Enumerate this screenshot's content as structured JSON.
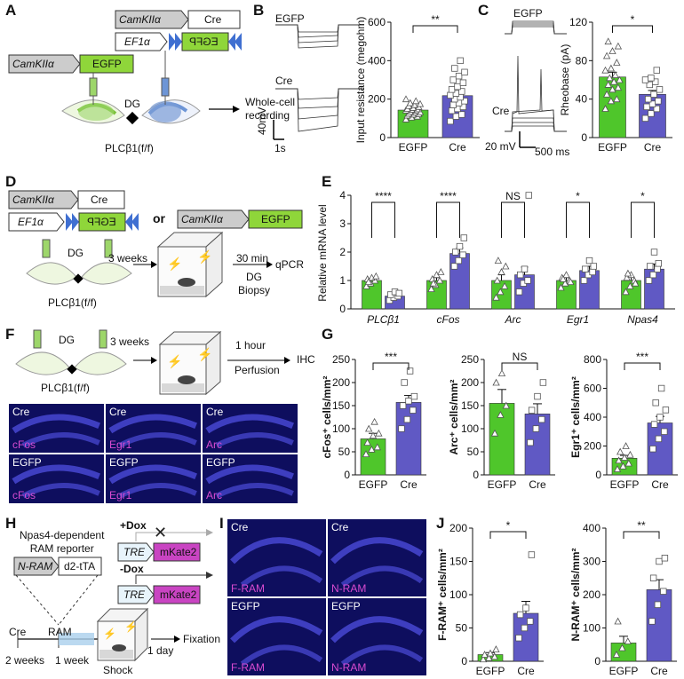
{
  "panels": {
    "A": "A",
    "B": "B",
    "C": "C",
    "D": "D",
    "E": "E",
    "F": "F",
    "G": "G",
    "H": "H",
    "I": "I",
    "J": "J"
  },
  "colors": {
    "egfp": "#4fc62b",
    "cre": "#6059c4",
    "micro_bg": "#0e0e5e",
    "magenta": "#d84bd0",
    "arrow_blue": "#3f6fd1"
  },
  "panel_a": {
    "promoter": "CamKIIα",
    "egfp": "EGFP",
    "cre": "Cre",
    "ef1a": "EF1α",
    "egfp_flipped": "EGFP",
    "dg": "DG",
    "mouse": "PLCβ1(f/f)",
    "readout": "Whole-cell\nrecording"
  },
  "panel_b": {
    "trace1": "EGFP",
    "trace2": "Cre",
    "scale_y": "40mV",
    "scale_x": "1s",
    "significance": "**"
  },
  "panel_c": {
    "trace1": "EGFP",
    "trace2": "Cre",
    "scale_y": "20 mV",
    "scale_x": "500 ms",
    "significance": "*"
  },
  "panel_d": {
    "promoter": "CamKIIα",
    "cre": "Cre",
    "ef1a": "EF1α",
    "egfp_flipped": "EGFP",
    "or": "or",
    "egfp": "EGFP",
    "dg": "DG",
    "mouse": "PLCβ1(f/f)",
    "weeks": "3 weeks",
    "time": "30 min",
    "biopsy": "DG\nBiopsy",
    "readout": "qPCR"
  },
  "panel_f": {
    "dg": "DG",
    "mouse": "PLCβ1(f/f)",
    "weeks": "3 weeks",
    "time": "1 hour",
    "perfusion": "Perfusion",
    "readout": "IHC",
    "micrographs": [
      {
        "group": "Cre",
        "stain": "cFos"
      },
      {
        "group": "Cre",
        "stain": "Egr1"
      },
      {
        "group": "Cre",
        "stain": "Arc"
      },
      {
        "group": "EGFP",
        "stain": "cFos"
      },
      {
        "group": "EGFP",
        "stain": "Egr1"
      },
      {
        "group": "EGFP",
        "stain": "Arc"
      }
    ]
  },
  "panel_h": {
    "plus_dox": "+Dox",
    "minus_dox": "-Dox",
    "reporter": "Npas4-dependent\nRAM reporter",
    "nram": "N-RAM",
    "tta": "d2-tTA",
    "tre": "TRE",
    "mkate": "mKate2",
    "cre": "Cre",
    "ram": "RAM",
    "weeks2": "2 weeks",
    "weeks1": "1 week",
    "day": "1 day",
    "shock": "Shock",
    "readout": "Fixation"
  },
  "panel_i": {
    "micrographs": [
      {
        "group": "Cre",
        "stain": "F-RAM"
      },
      {
        "group": "Cre",
        "stain": "N-RAM"
      },
      {
        "group": "EGFP",
        "stain": "F-RAM"
      },
      {
        "group": "EGFP",
        "stain": "N-RAM"
      }
    ]
  },
  "chart_data": [
    {
      "id": "B",
      "type": "bar",
      "title": "",
      "categories": [
        "EGFP",
        "Cre"
      ],
      "values": [
        143,
        218
      ],
      "errors": [
        12,
        20
      ],
      "ylabel": "Input resistance (megohm)",
      "ylim": [
        0,
        600
      ],
      "yticks": [
        0,
        200,
        400,
        600
      ],
      "significance": "**",
      "points": {
        "EGFP": [
          95,
          105,
          110,
          115,
          120,
          122,
          125,
          130,
          132,
          135,
          140,
          142,
          145,
          148,
          150,
          155,
          160,
          165,
          170,
          175,
          180,
          190,
          200
        ],
        "Cre": [
          85,
          110,
          120,
          140,
          150,
          160,
          170,
          180,
          190,
          200,
          210,
          220,
          230,
          240,
          250,
          265,
          285,
          300,
          320,
          340,
          360,
          400
        ]
      }
    },
    {
      "id": "C",
      "type": "bar",
      "title": "",
      "categories": [
        "EGFP",
        "Cre"
      ],
      "values": [
        63,
        45
      ],
      "errors": [
        5,
        4
      ],
      "ylabel": "Rheobase (pA)",
      "ylim": [
        0,
        120
      ],
      "yticks": [
        0,
        40,
        80,
        120
      ],
      "significance": "*",
      "points": {
        "EGFP": [
          30,
          38,
          40,
          45,
          50,
          52,
          55,
          58,
          60,
          62,
          65,
          70,
          72,
          78,
          85,
          90,
          95,
          100
        ],
        "Cre": [
          20,
          25,
          30,
          32,
          35,
          38,
          40,
          45,
          50,
          55,
          58,
          60,
          62,
          70
        ]
      }
    },
    {
      "id": "E",
      "type": "bar",
      "title": "",
      "categories": [
        "PLCβ1",
        "cFos",
        "Arc",
        "Egr1",
        "Npas4"
      ],
      "ylabel": "Relative mRNA level",
      "ylim": [
        0,
        4
      ],
      "yticks": [
        0,
        1,
        2,
        3,
        4
      ],
      "series": [
        {
          "name": "EGFP",
          "values": [
            1.0,
            1.0,
            1.0,
            1.0,
            1.0
          ],
          "errors": [
            0.07,
            0.1,
            0.2,
            0.1,
            0.12
          ]
        },
        {
          "name": "Cre",
          "values": [
            0.45,
            1.95,
            1.2,
            1.35,
            1.4
          ],
          "errors": [
            0.06,
            0.2,
            0.27,
            0.15,
            0.18
          ]
        }
      ],
      "significance": [
        "****",
        "****",
        "NS",
        "*",
        "*"
      ],
      "points": {
        "EGFP": [
          [
            0.8,
            0.9,
            1.0,
            1.05,
            1.1,
            1.15,
            0.95
          ],
          [
            0.7,
            0.85,
            1.0,
            1.05,
            1.2,
            1.3,
            0.9
          ],
          [
            0.4,
            0.6,
            0.8,
            1.0,
            1.3,
            1.5,
            1.7
          ],
          [
            0.75,
            0.9,
            1.0,
            1.1,
            1.2,
            0.95,
            1.05
          ],
          [
            0.6,
            0.8,
            1.0,
            1.1,
            1.2,
            0.9,
            1.25
          ]
        ],
        "Cre": [
          [
            0.3,
            0.4,
            0.45,
            0.5,
            0.6,
            0.55
          ],
          [
            1.5,
            1.7,
            1.9,
            2.0,
            2.2,
            2.5
          ],
          [
            0.6,
            0.9,
            1.0,
            1.2,
            1.4,
            4.0
          ],
          [
            1.0,
            1.2,
            1.3,
            1.4,
            1.7,
            1.5
          ],
          [
            1.0,
            1.2,
            1.4,
            1.5,
            2.0,
            1.6
          ]
        ]
      }
    },
    {
      "id": "G1",
      "type": "bar",
      "categories": [
        "EGFP",
        "Cre"
      ],
      "values": [
        78,
        157
      ],
      "errors": [
        12,
        15
      ],
      "ylabel": "cFos⁺ cells/mm²",
      "ylim": [
        0,
        250
      ],
      "yticks": [
        0,
        50,
        100,
        150,
        200,
        250
      ],
      "significance": "***",
      "points": {
        "EGFP": [
          45,
          55,
          60,
          70,
          85,
          90,
          100,
          115
        ],
        "Cre": [
          100,
          120,
          140,
          150,
          160,
          170,
          200,
          225
        ]
      }
    },
    {
      "id": "G2",
      "type": "bar",
      "categories": [
        "EGFP",
        "Cre"
      ],
      "values": [
        155,
        132
      ],
      "errors": [
        30,
        22
      ],
      "ylabel": "Arc⁺ cells/mm²",
      "ylim": [
        0,
        250
      ],
      "yticks": [
        0,
        50,
        100,
        150,
        200,
        250
      ],
      "significance": "NS",
      "points": {
        "EGFP": [
          90,
          130,
          150,
          200,
          220
        ],
        "Cre": [
          70,
          100,
          120,
          140,
          170,
          200
        ]
      }
    },
    {
      "id": "G3",
      "type": "bar",
      "categories": [
        "EGFP",
        "Cre"
      ],
      "values": [
        115,
        360
      ],
      "errors": [
        20,
        45
      ],
      "ylabel": "Egr1⁺ cells/mm²",
      "ylim": [
        0,
        800
      ],
      "yticks": [
        0,
        200,
        400,
        600,
        800
      ],
      "significance": "***",
      "points": {
        "EGFP": [
          40,
          60,
          80,
          100,
          120,
          140,
          160,
          200
        ],
        "Cre": [
          180,
          250,
          300,
          350,
          400,
          450,
          500,
          600
        ]
      }
    },
    {
      "id": "J1",
      "type": "bar",
      "categories": [
        "EGFP",
        "Cre"
      ],
      "values": [
        10,
        72
      ],
      "errors": [
        3,
        18
      ],
      "ylabel": "F-RAM⁺ cells/mm²",
      "ylim": [
        0,
        200
      ],
      "yticks": [
        0,
        50,
        100,
        150,
        200
      ],
      "significance": "*",
      "points": {
        "EGFP": [
          3,
          5,
          7,
          10,
          12,
          18
        ],
        "Cre": [
          35,
          50,
          60,
          70,
          80,
          160
        ]
      }
    },
    {
      "id": "J2",
      "type": "bar",
      "categories": [
        "EGFP",
        "Cre"
      ],
      "values": [
        55,
        215
      ],
      "errors": [
        20,
        30
      ],
      "ylabel": "N-RAM⁺ cells/mm²",
      "ylim": [
        0,
        400
      ],
      "yticks": [
        0,
        100,
        200,
        300,
        400
      ],
      "significance": "**",
      "points": {
        "EGFP": [
          20,
          40,
          60,
          120
        ],
        "Cre": [
          120,
          170,
          210,
          250,
          300,
          310
        ]
      }
    }
  ]
}
